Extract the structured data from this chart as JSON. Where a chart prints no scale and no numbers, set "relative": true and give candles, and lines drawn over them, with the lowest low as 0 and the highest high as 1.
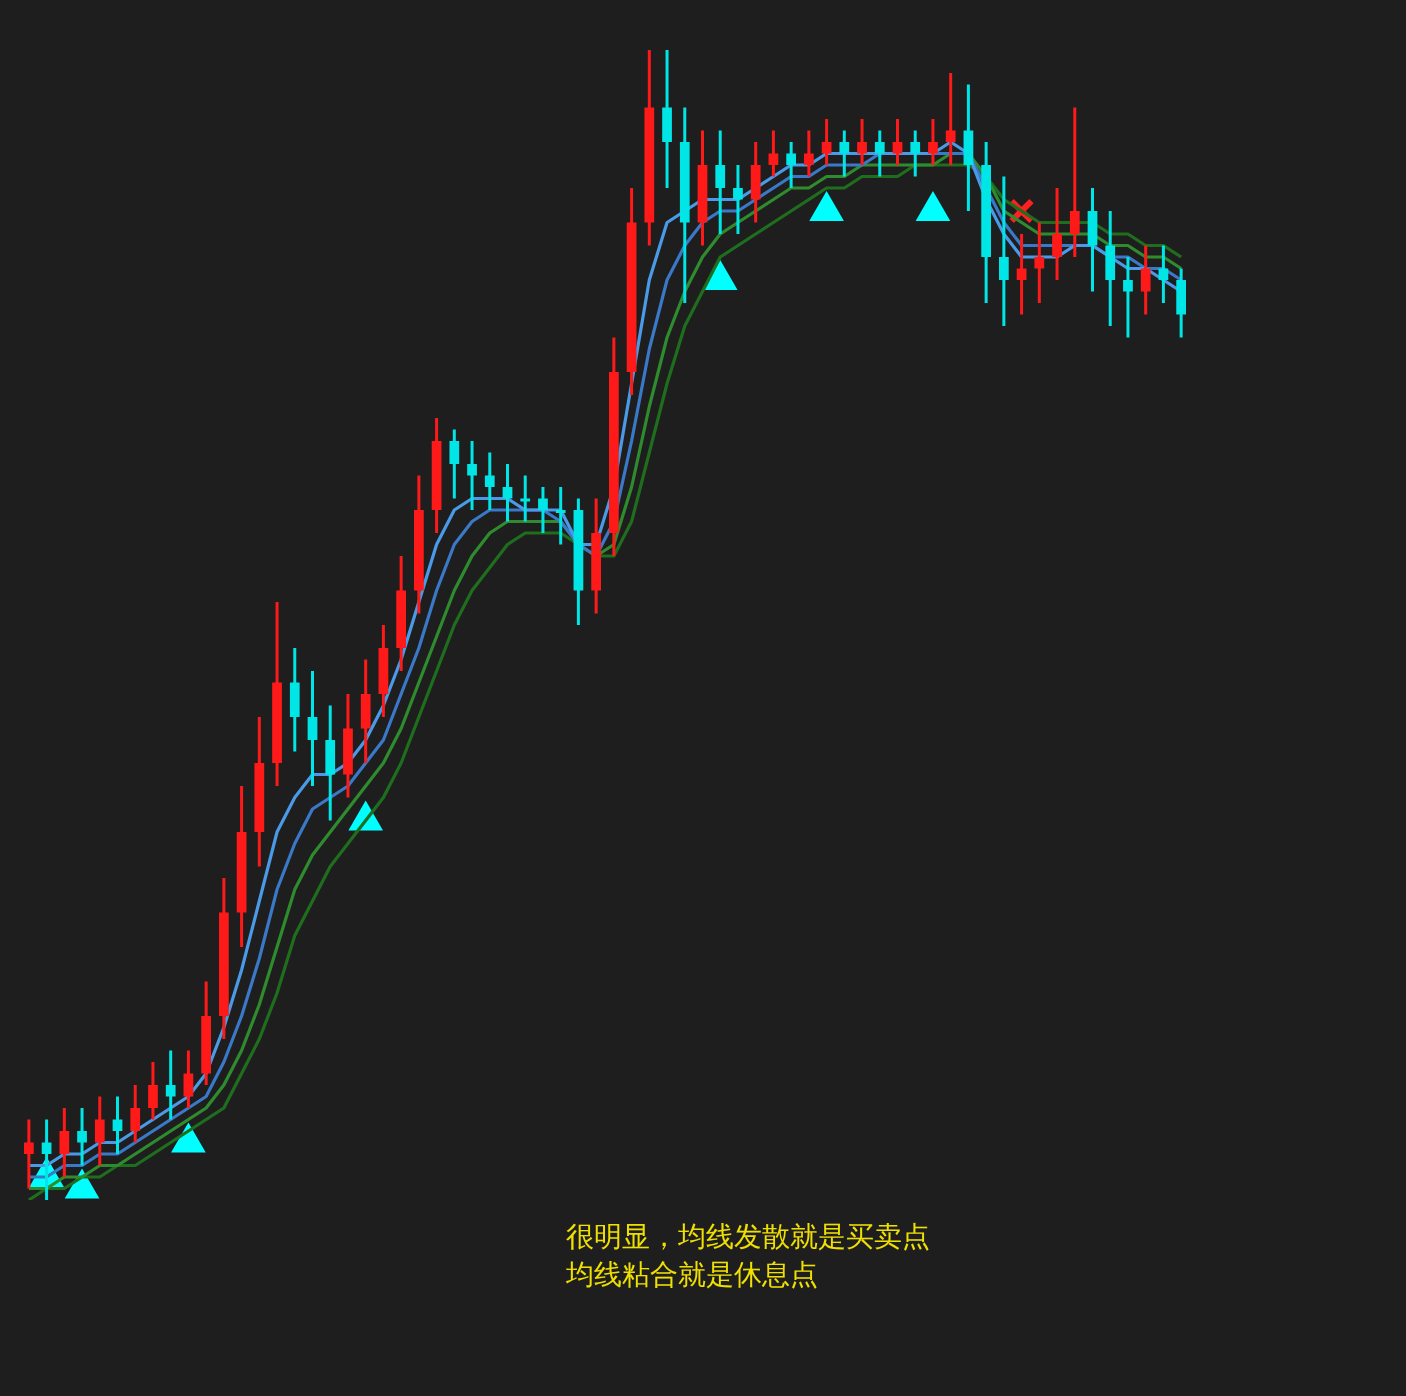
{
  "chart_data": {
    "type": "candlestick",
    "relative": true,
    "legend": false,
    "tick_labels": false,
    "categories": [
      null,
      null,
      null,
      null,
      null,
      null,
      null,
      null,
      null,
      null,
      null,
      null,
      null,
      null,
      null,
      null,
      null,
      null,
      null,
      null,
      null,
      null,
      null,
      null,
      null,
      null,
      null,
      null,
      null,
      null,
      null,
      null,
      null,
      null,
      null,
      null,
      null,
      null,
      null,
      null,
      null,
      null,
      null,
      null,
      null,
      null,
      null,
      null,
      null,
      null,
      null,
      null,
      null,
      null,
      null,
      null,
      null,
      null,
      null,
      null,
      null,
      null,
      null,
      null,
      null,
      null
    ],
    "ohlc": [
      [
        0.04,
        0.07,
        0.01,
        0.05
      ],
      [
        0.05,
        0.07,
        0.0,
        0.04
      ],
      [
        0.04,
        0.08,
        0.02,
        0.06
      ],
      [
        0.06,
        0.08,
        0.03,
        0.05
      ],
      [
        0.05,
        0.09,
        0.03,
        0.07
      ],
      [
        0.07,
        0.09,
        0.04,
        0.06
      ],
      [
        0.06,
        0.1,
        0.05,
        0.08
      ],
      [
        0.08,
        0.12,
        0.07,
        0.1
      ],
      [
        0.1,
        0.13,
        0.07,
        0.09
      ],
      [
        0.09,
        0.13,
        0.08,
        0.11
      ],
      [
        0.11,
        0.19,
        0.1,
        0.16
      ],
      [
        0.16,
        0.28,
        0.14,
        0.25
      ],
      [
        0.25,
        0.36,
        0.22,
        0.32
      ],
      [
        0.32,
        0.42,
        0.29,
        0.38
      ],
      [
        0.38,
        0.52,
        0.36,
        0.45
      ],
      [
        0.45,
        0.48,
        0.39,
        0.42
      ],
      [
        0.42,
        0.46,
        0.36,
        0.4
      ],
      [
        0.4,
        0.43,
        0.33,
        0.37
      ],
      [
        0.37,
        0.44,
        0.35,
        0.41
      ],
      [
        0.41,
        0.47,
        0.38,
        0.44
      ],
      [
        0.44,
        0.5,
        0.42,
        0.48
      ],
      [
        0.48,
        0.56,
        0.46,
        0.53
      ],
      [
        0.53,
        0.63,
        0.51,
        0.6
      ],
      [
        0.6,
        0.68,
        0.58,
        0.66
      ],
      [
        0.66,
        0.67,
        0.61,
        0.64
      ],
      [
        0.64,
        0.66,
        0.6,
        0.63
      ],
      [
        0.63,
        0.65,
        0.6,
        0.62
      ],
      [
        0.62,
        0.64,
        0.59,
        0.61
      ],
      [
        0.61,
        0.63,
        0.59,
        0.61
      ],
      [
        0.61,
        0.62,
        0.58,
        0.6
      ],
      [
        0.6,
        0.62,
        0.57,
        0.6
      ],
      [
        0.6,
        0.61,
        0.5,
        0.53
      ],
      [
        0.53,
        0.61,
        0.51,
        0.58
      ],
      [
        0.58,
        0.75,
        0.56,
        0.72
      ],
      [
        0.72,
        0.88,
        0.7,
        0.85
      ],
      [
        0.85,
        1.0,
        0.83,
        0.95
      ],
      [
        0.95,
        1.0,
        0.88,
        0.92
      ],
      [
        0.92,
        0.95,
        0.78,
        0.85
      ],
      [
        0.85,
        0.93,
        0.83,
        0.9
      ],
      [
        0.9,
        0.93,
        0.84,
        0.88
      ],
      [
        0.88,
        0.9,
        0.84,
        0.87
      ],
      [
        0.87,
        0.92,
        0.85,
        0.9
      ],
      [
        0.9,
        0.93,
        0.89,
        0.91
      ],
      [
        0.91,
        0.92,
        0.88,
        0.9
      ],
      [
        0.9,
        0.93,
        0.89,
        0.91
      ],
      [
        0.91,
        0.94,
        0.9,
        0.92
      ],
      [
        0.92,
        0.93,
        0.89,
        0.91
      ],
      [
        0.91,
        0.94,
        0.9,
        0.92
      ],
      [
        0.92,
        0.93,
        0.89,
        0.91
      ],
      [
        0.91,
        0.94,
        0.9,
        0.92
      ],
      [
        0.92,
        0.93,
        0.89,
        0.91
      ],
      [
        0.91,
        0.94,
        0.9,
        0.92
      ],
      [
        0.92,
        0.98,
        0.9,
        0.93
      ],
      [
        0.93,
        0.97,
        0.86,
        0.9
      ],
      [
        0.9,
        0.92,
        0.78,
        0.82
      ],
      [
        0.82,
        0.89,
        0.76,
        0.8
      ],
      [
        0.8,
        0.84,
        0.77,
        0.81
      ],
      [
        0.81,
        0.85,
        0.78,
        0.82
      ],
      [
        0.82,
        0.88,
        0.8,
        0.84
      ],
      [
        0.84,
        0.95,
        0.82,
        0.86
      ],
      [
        0.86,
        0.88,
        0.79,
        0.83
      ],
      [
        0.83,
        0.86,
        0.76,
        0.8
      ],
      [
        0.8,
        0.82,
        0.75,
        0.79
      ],
      [
        0.79,
        0.83,
        0.77,
        0.81
      ],
      [
        0.81,
        0.83,
        0.78,
        0.8
      ],
      [
        0.8,
        0.81,
        0.75,
        0.77
      ]
    ],
    "colors": [
      "#ff1a1a",
      "#00e5e5",
      "#ff1a1a",
      "#00e5e5",
      "#ff1a1a",
      "#00e5e5",
      "#ff1a1a",
      "#ff1a1a",
      "#00e5e5",
      "#ff1a1a",
      "#ff1a1a",
      "#ff1a1a",
      "#ff1a1a",
      "#ff1a1a",
      "#ff1a1a",
      "#00e5e5",
      "#00e5e5",
      "#00e5e5",
      "#ff1a1a",
      "#ff1a1a",
      "#ff1a1a",
      "#ff1a1a",
      "#ff1a1a",
      "#ff1a1a",
      "#00e5e5",
      "#00e5e5",
      "#00e5e5",
      "#00e5e5",
      "#00e5e5",
      "#00e5e5",
      "#00e5e5",
      "#00e5e5",
      "#ff1a1a",
      "#ff1a1a",
      "#ff1a1a",
      "#ff1a1a",
      "#00e5e5",
      "#00e5e5",
      "#ff1a1a",
      "#00e5e5",
      "#00e5e5",
      "#ff1a1a",
      "#ff1a1a",
      "#00e5e5",
      "#ff1a1a",
      "#ff1a1a",
      "#00e5e5",
      "#ff1a1a",
      "#00e5e5",
      "#ff1a1a",
      "#00e5e5",
      "#ff1a1a",
      "#ff1a1a",
      "#00e5e5",
      "#00e5e5",
      "#00e5e5",
      "#ff1a1a",
      "#ff1a1a",
      "#ff1a1a",
      "#ff1a1a",
      "#00e5e5",
      "#00e5e5",
      "#00e5e5",
      "#ff1a1a",
      "#00e5e5",
      "#00e5e5"
    ],
    "series": [
      {
        "type": "line",
        "color": "#4a9ae8",
        "values": [
          0.03,
          0.03,
          0.04,
          0.04,
          0.05,
          0.05,
          0.06,
          0.07,
          0.08,
          0.09,
          0.11,
          0.15,
          0.2,
          0.26,
          0.32,
          0.35,
          0.37,
          0.37,
          0.38,
          0.4,
          0.43,
          0.47,
          0.52,
          0.57,
          0.6,
          0.61,
          0.61,
          0.61,
          0.6,
          0.6,
          0.6,
          0.57,
          0.57,
          0.62,
          0.71,
          0.8,
          0.85,
          0.86,
          0.87,
          0.87,
          0.87,
          0.88,
          0.89,
          0.9,
          0.9,
          0.91,
          0.91,
          0.91,
          0.91,
          0.91,
          0.91,
          0.91,
          0.92,
          0.91,
          0.87,
          0.84,
          0.82,
          0.82,
          0.82,
          0.83,
          0.83,
          0.82,
          0.81,
          0.81,
          0.8,
          0.79
        ]
      },
      {
        "type": "line",
        "color": "#3a78c8",
        "values": [
          0.02,
          0.02,
          0.03,
          0.03,
          0.04,
          0.04,
          0.05,
          0.06,
          0.07,
          0.08,
          0.09,
          0.12,
          0.16,
          0.21,
          0.27,
          0.31,
          0.34,
          0.35,
          0.36,
          0.38,
          0.4,
          0.44,
          0.48,
          0.53,
          0.57,
          0.59,
          0.6,
          0.6,
          0.6,
          0.6,
          0.59,
          0.57,
          0.56,
          0.59,
          0.66,
          0.74,
          0.8,
          0.83,
          0.85,
          0.86,
          0.86,
          0.87,
          0.88,
          0.89,
          0.89,
          0.9,
          0.9,
          0.9,
          0.91,
          0.91,
          0.91,
          0.91,
          0.91,
          0.91,
          0.88,
          0.85,
          0.83,
          0.83,
          0.83,
          0.83,
          0.83,
          0.82,
          0.82,
          0.81,
          0.81,
          0.8
        ]
      },
      {
        "type": "line",
        "color": "#2e8b2e",
        "values": [
          0.01,
          0.01,
          0.02,
          0.02,
          0.03,
          0.03,
          0.04,
          0.05,
          0.06,
          0.07,
          0.08,
          0.1,
          0.13,
          0.17,
          0.22,
          0.27,
          0.3,
          0.32,
          0.34,
          0.36,
          0.38,
          0.41,
          0.45,
          0.49,
          0.53,
          0.56,
          0.58,
          0.59,
          0.59,
          0.59,
          0.59,
          0.57,
          0.56,
          0.57,
          0.62,
          0.69,
          0.75,
          0.79,
          0.82,
          0.84,
          0.85,
          0.86,
          0.87,
          0.88,
          0.88,
          0.89,
          0.89,
          0.9,
          0.9,
          0.9,
          0.9,
          0.9,
          0.91,
          0.91,
          0.89,
          0.86,
          0.85,
          0.84,
          0.84,
          0.84,
          0.84,
          0.83,
          0.83,
          0.82,
          0.82,
          0.81
        ]
      },
      {
        "type": "line",
        "color": "#1e6e1e",
        "values": [
          0.0,
          0.01,
          0.01,
          0.02,
          0.02,
          0.03,
          0.03,
          0.04,
          0.05,
          0.06,
          0.07,
          0.08,
          0.11,
          0.14,
          0.18,
          0.23,
          0.26,
          0.29,
          0.31,
          0.33,
          0.35,
          0.38,
          0.42,
          0.46,
          0.5,
          0.53,
          0.55,
          0.57,
          0.58,
          0.58,
          0.58,
          0.57,
          0.56,
          0.56,
          0.59,
          0.65,
          0.71,
          0.76,
          0.79,
          0.82,
          0.83,
          0.84,
          0.85,
          0.86,
          0.87,
          0.88,
          0.88,
          0.89,
          0.89,
          0.89,
          0.9,
          0.9,
          0.9,
          0.9,
          0.89,
          0.87,
          0.86,
          0.85,
          0.85,
          0.85,
          0.85,
          0.84,
          0.84,
          0.83,
          0.83,
          0.82
        ]
      },
      {
        "type": "scatter",
        "color": "#00ffff",
        "marker": "triangle",
        "values": [
          null,
          0.02,
          null,
          0.01,
          null,
          null,
          null,
          null,
          null,
          0.05,
          null,
          null,
          null,
          null,
          null,
          null,
          null,
          null,
          null,
          0.33,
          null,
          null,
          null,
          null,
          null,
          null,
          null,
          null,
          null,
          null,
          null,
          null,
          null,
          null,
          null,
          null,
          null,
          null,
          null,
          0.8,
          null,
          null,
          null,
          null,
          null,
          0.86,
          null,
          null,
          null,
          null,
          null,
          0.86,
          null,
          null,
          null,
          null,
          null,
          null,
          null,
          null,
          null,
          null,
          null,
          null,
          null,
          null
        ]
      },
      {
        "type": "scatter",
        "color": "#ff2020",
        "marker": "cross",
        "values": [
          null,
          null,
          null,
          null,
          null,
          null,
          null,
          null,
          null,
          null,
          null,
          null,
          null,
          null,
          null,
          null,
          null,
          null,
          null,
          null,
          null,
          null,
          null,
          null,
          null,
          null,
          null,
          null,
          null,
          null,
          null,
          null,
          null,
          null,
          null,
          null,
          null,
          null,
          null,
          null,
          null,
          null,
          null,
          null,
          null,
          null,
          null,
          null,
          null,
          null,
          null,
          null,
          null,
          null,
          null,
          null,
          0.86,
          null,
          null,
          null,
          null,
          null,
          null,
          null,
          null,
          null
        ]
      }
    ],
    "annotations": [
      "很明显，均线发散就是买卖点",
      "均线粘合就是休息点"
    ]
  }
}
